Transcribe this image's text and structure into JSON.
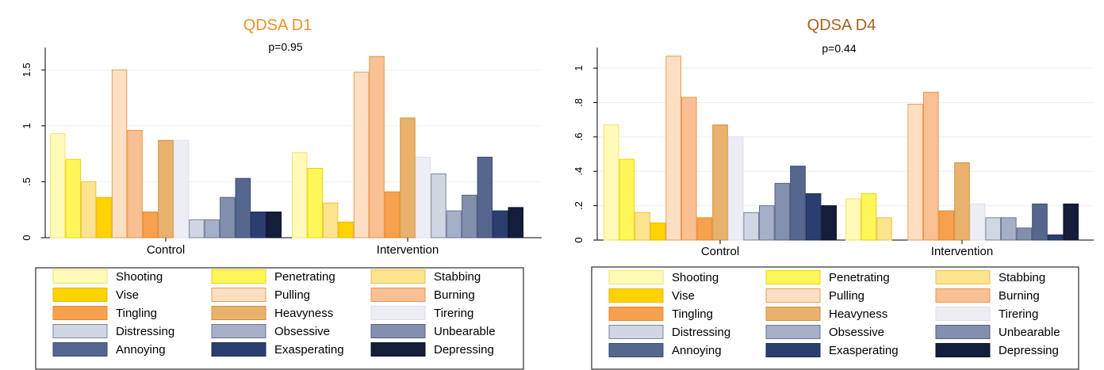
{
  "chart_data": [
    {
      "type": "bar",
      "title": "QDSA D1",
      "title_color": "#E8922E",
      "annotation": "p=0.95",
      "categories": [
        "Control",
        "Intervention"
      ],
      "ylim": [
        0,
        1.7
      ],
      "yticks": [
        0,
        0.5,
        1,
        1.5
      ],
      "ytick_labels": [
        "0",
        ".5",
        "1",
        "1.5"
      ],
      "grid": true,
      "legend_position": "bottom",
      "series": [
        {
          "name": "Shooting",
          "values": [
            0.93,
            0.76
          ],
          "color": "#FFFAB8",
          "stroke": "#F2E26A"
        },
        {
          "name": "Penetrating",
          "values": [
            0.7,
            0.62
          ],
          "color": "#FFF65A",
          "stroke": "#EAD400"
        },
        {
          "name": "Stabbing",
          "values": [
            0.5,
            0.31
          ],
          "color": "#FCE48E",
          "stroke": "#E9C24E"
        },
        {
          "name": "Vise",
          "values": [
            0.36,
            0.14
          ],
          "color": "#FFD200",
          "stroke": "#E7B800"
        },
        {
          "name": "Pulling",
          "values": [
            1.5,
            1.48
          ],
          "color": "#FDDFC4",
          "stroke": "#EE9B4E"
        },
        {
          "name": "Burning",
          "values": [
            0.96,
            1.62
          ],
          "color": "#F9C094",
          "stroke": "#EB954A"
        },
        {
          "name": "Tingling",
          "values": [
            0.23,
            0.41
          ],
          "color": "#F7A04E",
          "stroke": "#E58A30"
        },
        {
          "name": "Heavyness",
          "values": [
            0.87,
            1.07
          ],
          "color": "#E9B26C",
          "stroke": "#CF9040"
        },
        {
          "name": "Tirering",
          "values": [
            0.87,
            0.72
          ],
          "color": "#EDEEF5",
          "stroke": "#DCDEEA"
        },
        {
          "name": "Distressing",
          "values": [
            0.16,
            0.57
          ],
          "color": "#D0D7E3",
          "stroke": "#7A869B"
        },
        {
          "name": "Obsessive",
          "values": [
            0.16,
            0.24
          ],
          "color": "#A6AFC8",
          "stroke": "#6A7595"
        },
        {
          "name": "Unbearable",
          "values": [
            0.36,
            0.38
          ],
          "color": "#8390AD",
          "stroke": "#56617F"
        },
        {
          "name": "Annoying",
          "values": [
            0.53,
            0.72
          ],
          "color": "#55678F",
          "stroke": "#3A4A70"
        },
        {
          "name": "Exasperating",
          "values": [
            0.23,
            0.24
          ],
          "color": "#2B3E70",
          "stroke": "#1D2C55"
        },
        {
          "name": "Depressing",
          "values": [
            0.23,
            0.27
          ],
          "color": "#141D3A",
          "stroke": "#0B1228"
        }
      ]
    },
    {
      "type": "bar",
      "title": "QDSA D4",
      "title_color": "#A8611C",
      "annotation": "p=0.44",
      "categories": [
        "Control",
        "Intervention"
      ],
      "ylim": [
        0,
        1.12
      ],
      "yticks": [
        0,
        0.2,
        0.4,
        0.6,
        0.8,
        1
      ],
      "ytick_labels": [
        "0",
        ".2",
        ".4",
        ".6",
        ".8",
        "1"
      ],
      "grid": true,
      "legend_position": "bottom",
      "series": [
        {
          "name": "Shooting",
          "values": [
            0.67,
            0.24
          ],
          "color": "#FFFAB8",
          "stroke": "#F2E26A"
        },
        {
          "name": "Penetrating",
          "values": [
            0.47,
            0.27
          ],
          "color": "#FFF65A",
          "stroke": "#EAD400"
        },
        {
          "name": "Stabbing",
          "values": [
            0.16,
            0.13
          ],
          "color": "#FCE48E",
          "stroke": "#E9C24E"
        },
        {
          "name": "Vise",
          "values": [
            0.1,
            0.0
          ],
          "color": "#FFD200",
          "stroke": "#E7B800"
        },
        {
          "name": "Pulling",
          "values": [
            1.07,
            0.79
          ],
          "color": "#FDDFC4",
          "stroke": "#EE9B4E"
        },
        {
          "name": "Burning",
          "values": [
            0.83,
            0.86
          ],
          "color": "#F9C094",
          "stroke": "#EB954A"
        },
        {
          "name": "Tingling",
          "values": [
            0.13,
            0.17
          ],
          "color": "#F7A04E",
          "stroke": "#E58A30"
        },
        {
          "name": "Heavyness",
          "values": [
            0.67,
            0.45
          ],
          "color": "#E9B26C",
          "stroke": "#CF9040"
        },
        {
          "name": "Tirering",
          "values": [
            0.6,
            0.21
          ],
          "color": "#EDEEF5",
          "stroke": "#DCDEEA"
        },
        {
          "name": "Distressing",
          "values": [
            0.16,
            0.13
          ],
          "color": "#D0D7E3",
          "stroke": "#7A869B"
        },
        {
          "name": "Obsessive",
          "values": [
            0.2,
            0.13
          ],
          "color": "#A6AFC8",
          "stroke": "#6A7595"
        },
        {
          "name": "Unbearable",
          "values": [
            0.33,
            0.07
          ],
          "color": "#8390AD",
          "stroke": "#56617F"
        },
        {
          "name": "Annoying",
          "values": [
            0.43,
            0.21
          ],
          "color": "#55678F",
          "stroke": "#3A4A70"
        },
        {
          "name": "Exasperating",
          "values": [
            0.27,
            0.03
          ],
          "color": "#2B3E70",
          "stroke": "#1D2C55"
        },
        {
          "name": "Depressing",
          "values": [
            0.2,
            0.21
          ],
          "color": "#141D3A",
          "stroke": "#0B1228"
        }
      ]
    }
  ]
}
